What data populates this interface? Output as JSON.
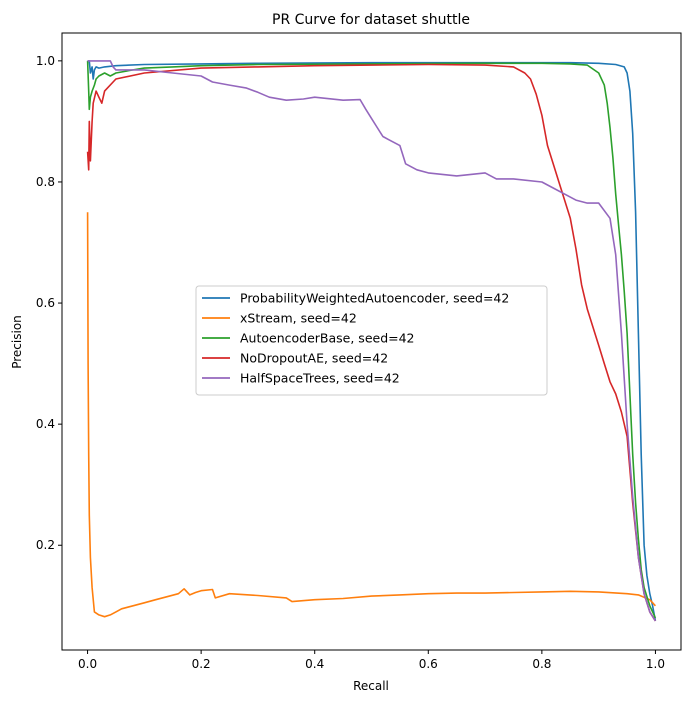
{
  "chart_data": {
    "type": "line",
    "title": "PR Curve for dataset shuttle",
    "xlabel": "Recall",
    "ylabel": "Precision",
    "xlim": [
      -0.045,
      1.045
    ],
    "ylim": [
      0.027,
      1.046
    ],
    "xticks": [
      0.0,
      0.2,
      0.4,
      0.6,
      0.8,
      1.0
    ],
    "xtick_labels": [
      "0.0",
      "0.2",
      "0.4",
      "0.6",
      "0.8",
      "1.0"
    ],
    "yticks": [
      0.2,
      0.4,
      0.6,
      0.8,
      1.0
    ],
    "ytick_labels": [
      "0.2",
      "0.4",
      "0.6",
      "0.8",
      "1.0"
    ],
    "grid": false,
    "legend_position": "center-right",
    "series": [
      {
        "name": "ProbabilityWeightedAutoencoder, seed=42",
        "color": "#1f77b4",
        "x": [
          0.0,
          0.003,
          0.005,
          0.008,
          0.01,
          0.012,
          0.015,
          0.02,
          0.03,
          0.05,
          0.1,
          0.2,
          0.3,
          0.5,
          0.7,
          0.85,
          0.9,
          0.93,
          0.945,
          0.95,
          0.955,
          0.96,
          0.965,
          0.97,
          0.975,
          0.98,
          0.985,
          0.99,
          0.995,
          1.0
        ],
        "y": [
          1.0,
          1.0,
          0.98,
          0.99,
          0.97,
          0.985,
          0.99,
          0.988,
          0.99,
          0.992,
          0.994,
          0.995,
          0.996,
          0.997,
          0.997,
          0.997,
          0.996,
          0.994,
          0.99,
          0.98,
          0.95,
          0.88,
          0.75,
          0.55,
          0.35,
          0.2,
          0.15,
          0.12,
          0.1,
          0.075
        ]
      },
      {
        "name": "xStream, seed=42",
        "color": "#ff7f0e",
        "x": [
          0.0,
          0.001,
          0.002,
          0.003,
          0.005,
          0.008,
          0.012,
          0.02,
          0.03,
          0.04,
          0.05,
          0.06,
          0.08,
          0.1,
          0.12,
          0.14,
          0.16,
          0.17,
          0.18,
          0.19,
          0.2,
          0.22,
          0.225,
          0.25,
          0.3,
          0.35,
          0.36,
          0.4,
          0.45,
          0.5,
          0.55,
          0.6,
          0.65,
          0.7,
          0.75,
          0.8,
          0.85,
          0.9,
          0.95,
          0.97,
          0.99,
          1.0
        ],
        "y": [
          0.75,
          0.5,
          0.35,
          0.25,
          0.18,
          0.13,
          0.09,
          0.085,
          0.082,
          0.085,
          0.09,
          0.095,
          0.1,
          0.105,
          0.11,
          0.115,
          0.12,
          0.128,
          0.118,
          0.122,
          0.125,
          0.127,
          0.113,
          0.12,
          0.117,
          0.113,
          0.107,
          0.11,
          0.112,
          0.116,
          0.118,
          0.12,
          0.121,
          0.121,
          0.122,
          0.123,
          0.124,
          0.123,
          0.12,
          0.118,
          0.11,
          0.1
        ]
      },
      {
        "name": "AutoencoderBase, seed=42",
        "color": "#2ca02c",
        "x": [
          0.0,
          0.002,
          0.003,
          0.005,
          0.008,
          0.012,
          0.015,
          0.02,
          0.03,
          0.04,
          0.05,
          0.08,
          0.1,
          0.15,
          0.2,
          0.3,
          0.5,
          0.7,
          0.8,
          0.85,
          0.88,
          0.9,
          0.91,
          0.915,
          0.92,
          0.925,
          0.93,
          0.935,
          0.94,
          0.945,
          0.95,
          0.955,
          0.96,
          0.965,
          0.97,
          0.975,
          0.98,
          0.99,
          1.0
        ],
        "y": [
          1.0,
          0.95,
          0.92,
          0.94,
          0.95,
          0.96,
          0.97,
          0.975,
          0.98,
          0.975,
          0.98,
          0.985,
          0.988,
          0.99,
          0.992,
          0.994,
          0.995,
          0.996,
          0.996,
          0.995,
          0.993,
          0.98,
          0.96,
          0.93,
          0.89,
          0.84,
          0.78,
          0.73,
          0.68,
          0.62,
          0.55,
          0.45,
          0.35,
          0.27,
          0.21,
          0.16,
          0.13,
          0.1,
          0.08
        ]
      },
      {
        "name": "NoDropoutAE, seed=42",
        "color": "#d62728",
        "x": [
          0.0,
          0.002,
          0.003,
          0.005,
          0.008,
          0.01,
          0.015,
          0.02,
          0.025,
          0.03,
          0.05,
          0.1,
          0.2,
          0.3,
          0.4,
          0.5,
          0.6,
          0.7,
          0.75,
          0.77,
          0.78,
          0.79,
          0.8,
          0.81,
          0.82,
          0.83,
          0.84,
          0.85,
          0.86,
          0.87,
          0.88,
          0.89,
          0.9,
          0.91,
          0.92,
          0.93,
          0.94,
          0.95,
          0.96,
          0.97,
          0.98,
          0.99,
          1.0
        ],
        "y": [
          0.85,
          0.82,
          0.9,
          0.835,
          0.9,
          0.93,
          0.95,
          0.94,
          0.93,
          0.95,
          0.97,
          0.98,
          0.988,
          0.99,
          0.992,
          0.993,
          0.994,
          0.993,
          0.99,
          0.98,
          0.97,
          0.945,
          0.91,
          0.86,
          0.83,
          0.8,
          0.77,
          0.74,
          0.69,
          0.63,
          0.59,
          0.56,
          0.53,
          0.5,
          0.47,
          0.45,
          0.42,
          0.38,
          0.27,
          0.18,
          0.12,
          0.09,
          0.075
        ]
      },
      {
        "name": "HalfSpaceTrees, seed=42",
        "color": "#9467bd",
        "x": [
          0.0,
          0.02,
          0.04,
          0.045,
          0.05,
          0.1,
          0.15,
          0.2,
          0.22,
          0.25,
          0.28,
          0.3,
          0.32,
          0.35,
          0.38,
          0.4,
          0.45,
          0.48,
          0.49,
          0.5,
          0.51,
          0.52,
          0.53,
          0.55,
          0.56,
          0.58,
          0.6,
          0.65,
          0.7,
          0.72,
          0.75,
          0.8,
          0.82,
          0.84,
          0.86,
          0.88,
          0.9,
          0.92,
          0.93,
          0.94,
          0.95,
          0.96,
          0.97,
          0.98,
          0.99,
          1.0
        ],
        "y": [
          1.0,
          1.0,
          1.0,
          0.99,
          0.985,
          0.985,
          0.98,
          0.975,
          0.965,
          0.96,
          0.955,
          0.948,
          0.94,
          0.935,
          0.937,
          0.94,
          0.935,
          0.936,
          0.92,
          0.905,
          0.89,
          0.875,
          0.87,
          0.86,
          0.83,
          0.82,
          0.815,
          0.81,
          0.815,
          0.805,
          0.805,
          0.8,
          0.79,
          0.78,
          0.77,
          0.765,
          0.765,
          0.74,
          0.68,
          0.55,
          0.4,
          0.28,
          0.18,
          0.12,
          0.09,
          0.075
        ]
      }
    ]
  }
}
